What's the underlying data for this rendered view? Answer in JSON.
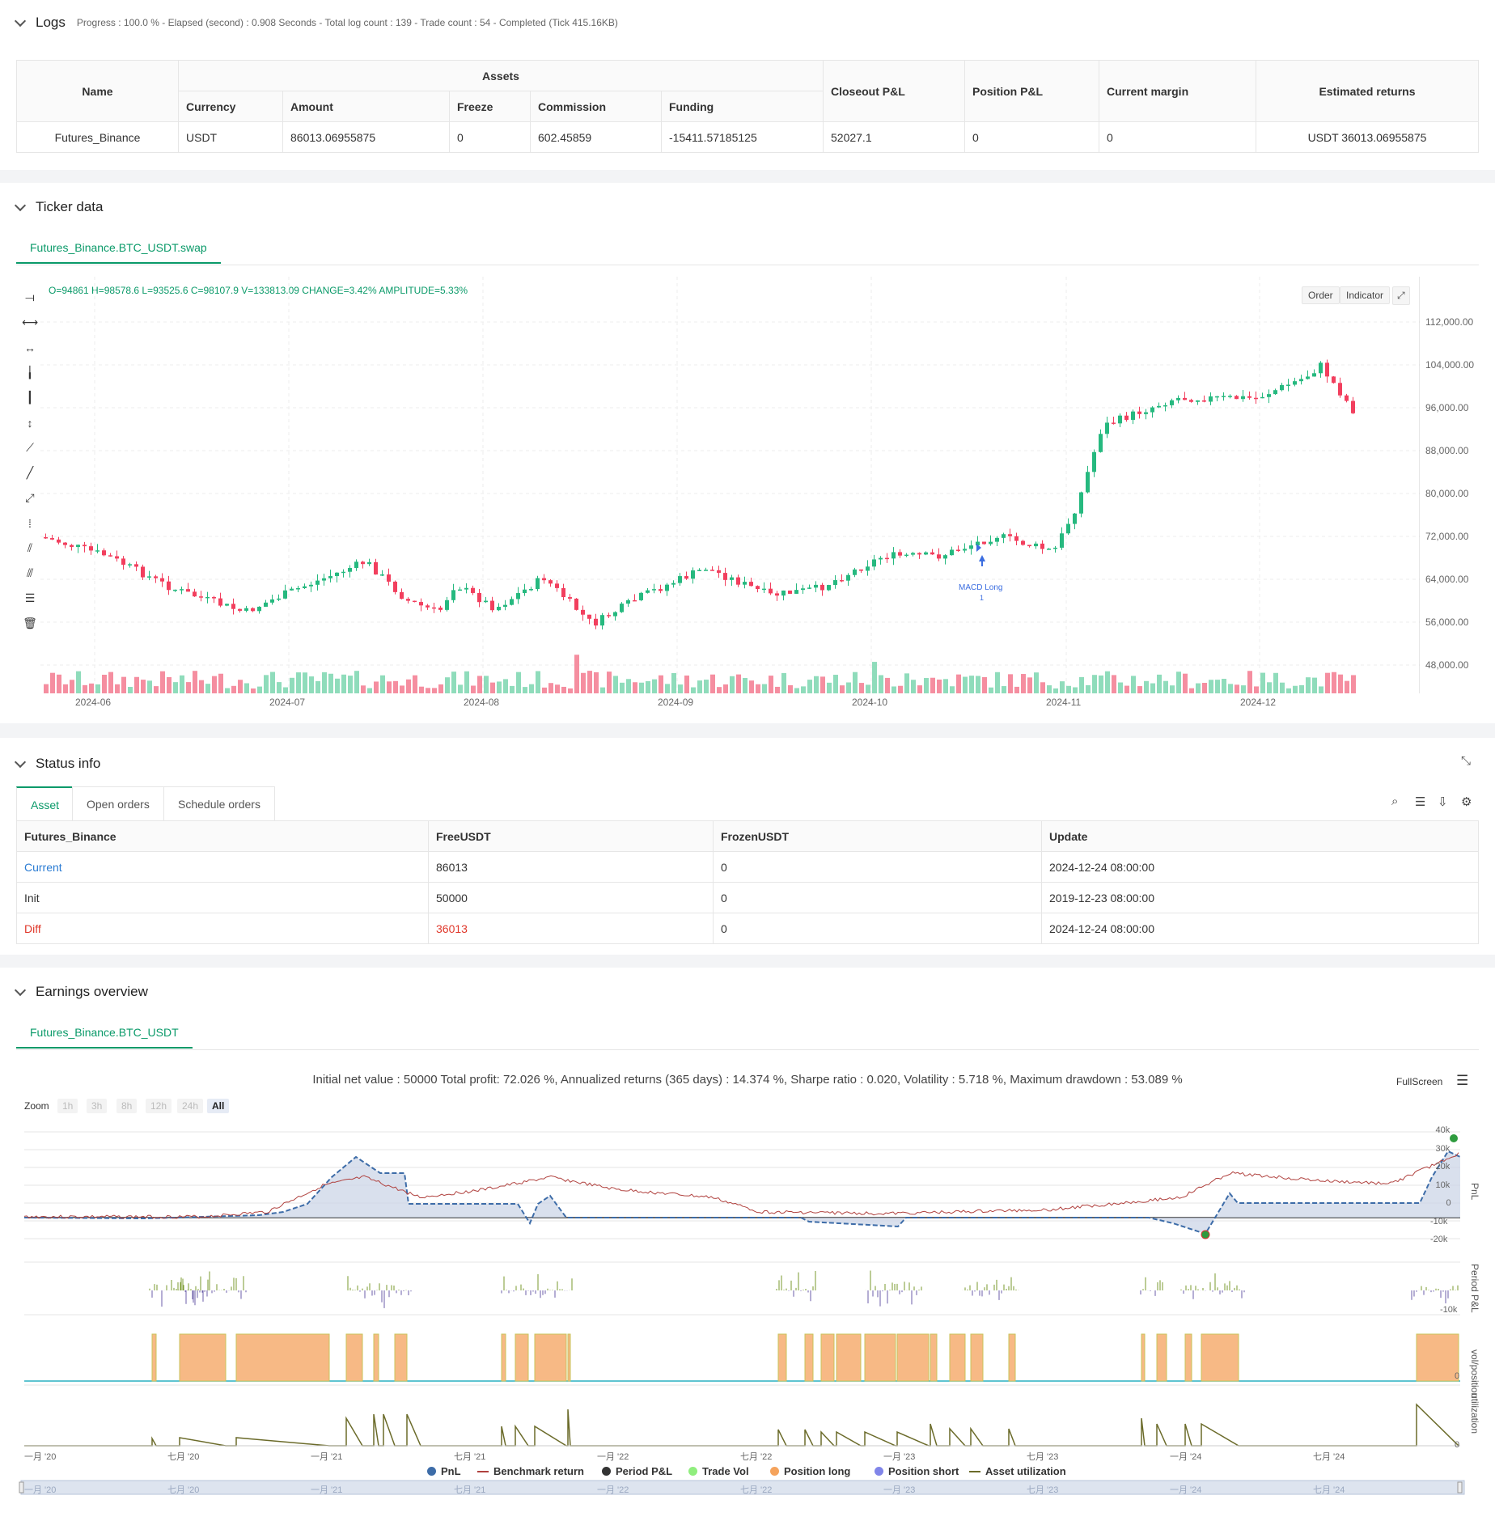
{
  "logs": {
    "title": "Logs",
    "info": "Progress : 100.0 % - Elapsed (second) : 0.908  Seconds - Total log count : 139 - Trade count : 54 - Completed (Tick 415.16KB)",
    "headers": {
      "name": "Name",
      "assets": "Assets",
      "currency": "Currency",
      "amount": "Amount",
      "freeze": "Freeze",
      "commission": "Commission",
      "funding": "Funding",
      "closeout": "Closeout P&L",
      "position": "Position P&L",
      "margin": "Current margin",
      "returns": "Estimated returns"
    },
    "row": {
      "name": "Futures_Binance",
      "currency": "USDT",
      "amount": "86013.06955875",
      "freeze": "0",
      "commission": "602.45859",
      "funding": "-15411.57185125",
      "closeout": "52027.1",
      "position": "0",
      "margin": "0",
      "returns": "USDT 36013.06955875"
    }
  },
  "ticker": {
    "title": "Ticker data",
    "tab": "Futures_Binance.BTC_USDT.swap",
    "ohlc": "O=94861  H=98578.6  L=93525.6  C=98107.9  V=133813.09  CHANGE=3.42%  AMPLITUDE=5.33%",
    "order_btn": "Order",
    "indicator_btn": "Indicator",
    "annotation": "MACD Long",
    "annotation_sub": "1",
    "y_ticks": [
      "112,000.00",
      "104,000.00",
      "96,000.00",
      "88,000.00",
      "80,000.00",
      "72,000.00",
      "64,000.00",
      "56,000.00",
      "48,000.00"
    ],
    "x_ticks": [
      "2024-06",
      "2024-07",
      "2024-08",
      "2024-09",
      "2024-10",
      "2024-11",
      "2024-12"
    ]
  },
  "status": {
    "title": "Status info",
    "tabs": [
      "Asset",
      "Open orders",
      "Schedule orders"
    ],
    "headers": [
      "Futures_Binance",
      "FreeUSDT",
      "FrozenUSDT",
      "Update"
    ],
    "rows": [
      [
        "Current",
        "86013",
        "0",
        "2024-12-24 08:00:00"
      ],
      [
        "Init",
        "50000",
        "0",
        "2019-12-23 08:00:00"
      ],
      [
        "Diff",
        "36013",
        "0",
        "2024-12-24 08:00:00"
      ]
    ]
  },
  "earnings": {
    "title": "Earnings overview",
    "tab": "Futures_Binance.BTC_USDT",
    "summary": "Initial net value : 50000  Total profit: 72.026 %, Annualized returns (365 days) : 14.374 %, Sharpe ratio : 0.020, Volatility : 5.718 %, Maximum drawdown : 53.089 %",
    "fullscreen": "FullScreen",
    "zoom_label": "Zoom",
    "zoom": [
      "1h",
      "3h",
      "8h",
      "12h",
      "24h",
      "All"
    ],
    "pnl_ticks": [
      "40k",
      "30k",
      "20k",
      "10k",
      "0",
      "-10k",
      "-20k"
    ],
    "ppl_tick": "-10k",
    "vol_tick": "0",
    "util_tick": "0",
    "side_labels": [
      "PnL",
      "Period P&L",
      "vol/position",
      "utilization"
    ],
    "x_ticks": [
      "一月 '20",
      "七月 '20",
      "一月 '21",
      "七月 '21",
      "一月 '22",
      "七月 '22",
      "一月 '23",
      "七月 '23",
      "一月 '24",
      "七月 '24"
    ],
    "legend": [
      {
        "name": "PnL",
        "color": "#3d6ca8"
      },
      {
        "name": "Benchmark return",
        "color": "#b0413e"
      },
      {
        "name": "Period P&L",
        "color": "#333333"
      },
      {
        "name": "Trade Vol",
        "color": "#90ee7e"
      },
      {
        "name": "Position long",
        "color": "#f5a35c"
      },
      {
        "name": "Position short",
        "color": "#8085e9"
      },
      {
        "name": "Asset utilization",
        "color": "#6b6b2a"
      }
    ]
  }
}
